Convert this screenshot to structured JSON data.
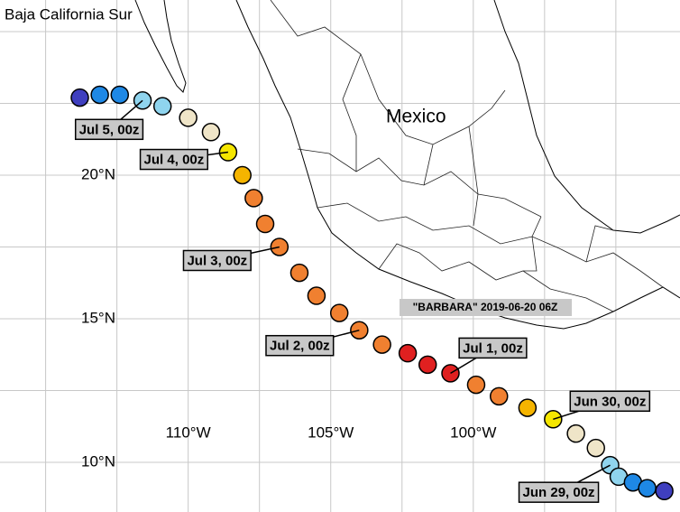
{
  "map": {
    "title": "Baja California Sur",
    "country_label": "Mexico",
    "storm_label": "\"BARBARA\" 2019-06-20 06Z",
    "lonlim": [
      -116.6,
      -92.75
    ],
    "latlim": [
      8.27,
      26.1
    ],
    "lon_grid": [
      -115,
      -112.5,
      -110,
      -107.5,
      -105,
      -102.5,
      -100,
      -97.5,
      -95
    ],
    "lat_grid": [
      10,
      12.5,
      15,
      17.5,
      20,
      22.5,
      25
    ],
    "lon_ticks": [
      {
        "value": -110,
        "label": "110°W"
      },
      {
        "value": -105,
        "label": "105°W"
      },
      {
        "value": -100,
        "label": "100°W"
      }
    ],
    "lat_ticks": [
      {
        "value": 20,
        "label": "20°N"
      },
      {
        "value": 15,
        "label": "15°N"
      },
      {
        "value": 10,
        "label": "10°N"
      }
    ],
    "points": [
      {
        "lon": -113.8,
        "lat": 22.7,
        "color": "#3f3fbf"
      },
      {
        "lon": -113.1,
        "lat": 22.8,
        "color": "#1e88e5"
      },
      {
        "lon": -112.4,
        "lat": 22.8,
        "color": "#1e88e5"
      },
      {
        "lon": -111.6,
        "lat": 22.6,
        "color": "#8fd4ee",
        "label": "Jul 5, 00z"
      },
      {
        "lon": -110.9,
        "lat": 22.4,
        "color": "#8fd4ee"
      },
      {
        "lon": -110.0,
        "lat": 22.0,
        "color": "#efe5c8"
      },
      {
        "lon": -109.2,
        "lat": 21.5,
        "color": "#efe5c8"
      },
      {
        "lon": -108.6,
        "lat": 20.8,
        "color": "#f5e600",
        "label": "Jul 4, 00z"
      },
      {
        "lon": -108.1,
        "lat": 20.0,
        "color": "#f5b400"
      },
      {
        "lon": -107.7,
        "lat": 19.2,
        "color": "#f08030"
      },
      {
        "lon": -107.3,
        "lat": 18.3,
        "color": "#f08030"
      },
      {
        "lon": -106.8,
        "lat": 17.5,
        "color": "#f08030",
        "label": "Jul 3, 00z"
      },
      {
        "lon": -106.1,
        "lat": 16.6,
        "color": "#f08030"
      },
      {
        "lon": -105.5,
        "lat": 15.8,
        "color": "#f08030"
      },
      {
        "lon": -104.7,
        "lat": 15.2,
        "color": "#f08030"
      },
      {
        "lon": -104.0,
        "lat": 14.6,
        "color": "#f08030",
        "label": "Jul 2, 00z"
      },
      {
        "lon": -103.2,
        "lat": 14.1,
        "color": "#f08030"
      },
      {
        "lon": -102.3,
        "lat": 13.8,
        "color": "#e02020"
      },
      {
        "lon": -101.6,
        "lat": 13.4,
        "color": "#e02020"
      },
      {
        "lon": -100.8,
        "lat": 13.1,
        "color": "#e02020",
        "label": "Jul 1, 00z"
      },
      {
        "lon": -99.9,
        "lat": 12.7,
        "color": "#f08030"
      },
      {
        "lon": -99.1,
        "lat": 12.3,
        "color": "#f08030"
      },
      {
        "lon": -98.1,
        "lat": 11.9,
        "color": "#f5b400"
      },
      {
        "lon": -97.2,
        "lat": 11.5,
        "color": "#f5e600",
        "label": "Jun 30, 00z"
      },
      {
        "lon": -96.4,
        "lat": 11.0,
        "color": "#efe5c8"
      },
      {
        "lon": -95.7,
        "lat": 10.5,
        "color": "#efe5c8"
      },
      {
        "lon": -95.2,
        "lat": 9.9,
        "color": "#8fd4ee",
        "label": "Jun 29, 00z"
      },
      {
        "lon": -94.9,
        "lat": 9.5,
        "color": "#8fd4ee"
      },
      {
        "lon": -94.4,
        "lat": 9.3,
        "color": "#1e88e5"
      },
      {
        "lon": -93.9,
        "lat": 9.1,
        "color": "#1e88e5"
      },
      {
        "lon": -93.3,
        "lat": 9.0,
        "color": "#3f3fbf"
      }
    ]
  }
}
